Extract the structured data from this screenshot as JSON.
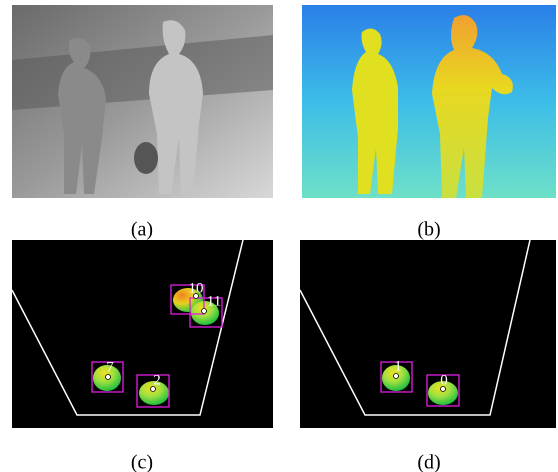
{
  "panels": [
    {
      "caption": "(a)"
    },
    {
      "caption": "(b)"
    },
    {
      "caption": "(c)",
      "detections": [
        {
          "id": 10
        },
        {
          "id": 11
        },
        {
          "id": 7
        },
        {
          "id": 2
        }
      ]
    },
    {
      "caption": "(d)",
      "detections": [
        {
          "id": 1
        },
        {
          "id": 0
        }
      ]
    }
  ]
}
